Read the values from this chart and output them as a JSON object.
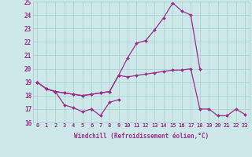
{
  "x": [
    0,
    1,
    2,
    3,
    4,
    5,
    6,
    7,
    8,
    9,
    10,
    11,
    12,
    13,
    14,
    15,
    16,
    17,
    18,
    19,
    20,
    21,
    22,
    23
  ],
  "line_upper": [
    19.0,
    18.5,
    18.3,
    18.2,
    18.1,
    18.0,
    18.1,
    18.2,
    18.3,
    19.5,
    20.8,
    21.9,
    22.1,
    22.9,
    23.8,
    24.9,
    24.3,
    24.0,
    20.0,
    null,
    null,
    null,
    null,
    null
  ],
  "line_mid": [
    19.0,
    18.5,
    18.3,
    18.2,
    18.1,
    18.0,
    18.1,
    18.2,
    18.3,
    19.5,
    19.4,
    19.5,
    19.6,
    19.7,
    19.8,
    19.9,
    19.9,
    20.0,
    17.0,
    17.0,
    16.5,
    16.5,
    17.0,
    16.6
  ],
  "line_lower": [
    19.0,
    18.5,
    18.3,
    17.3,
    17.1,
    16.8,
    17.0,
    16.5,
    17.5,
    17.7,
    null,
    null,
    null,
    null,
    null,
    null,
    null,
    null,
    null,
    null,
    null,
    null,
    null,
    null
  ],
  "color": "#9b2d8e",
  "bg_color": "#cce8e8",
  "grid_color": "#aacece",
  "xlabel": "Windchill (Refroidissement éolien,°C)",
  "ylim": [
    16,
    25
  ],
  "xlim_min": -0.5,
  "xlim_max": 23.5,
  "yticks": [
    16,
    17,
    18,
    19,
    20,
    21,
    22,
    23,
    24,
    25
  ],
  "xticks": [
    0,
    1,
    2,
    3,
    4,
    5,
    6,
    7,
    8,
    9,
    10,
    11,
    12,
    13,
    14,
    15,
    16,
    17,
    18,
    19,
    20,
    21,
    22,
    23
  ],
  "marker": "D",
  "markersize": 2.0,
  "linewidth": 0.9,
  "tick_fontsize": 5.0,
  "xlabel_fontsize": 5.5,
  "ytick_fontsize": 5.5
}
